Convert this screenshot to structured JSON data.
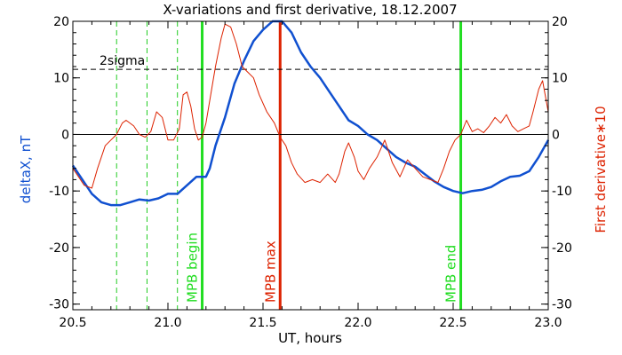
{
  "chart_data": {
    "type": "line",
    "title": "X-variations and first derivative, 18.12.2007",
    "xlabel": "UT, hours",
    "ylabel_left": "deltaX, nT",
    "ylabel_right": "First derivative∗10",
    "xlim": [
      20.5,
      23.0
    ],
    "ylim": [
      -31,
      20
    ],
    "x_ticks": [
      "20.5",
      "21.0",
      "21.5",
      "22.0",
      "22.5",
      "23.0"
    ],
    "x_tick_values": [
      20.5,
      21.0,
      21.5,
      22.0,
      22.5,
      23.0
    ],
    "y_ticks": [
      "20",
      "10",
      "0",
      "-10",
      "-20",
      "-30"
    ],
    "y_tick_values": [
      20,
      10,
      0,
      -10,
      -20,
      -30
    ],
    "grid": false,
    "threshold": {
      "label": "2sigma",
      "value": 11.5
    },
    "zero_line": 0,
    "markers": [
      {
        "label": "MPB begin",
        "x": 21.18,
        "color": "#22dd22"
      },
      {
        "label": "MPB max",
        "x": 21.59,
        "color": "#dd2200"
      },
      {
        "label": "MPB end",
        "x": 22.54,
        "color": "#22dd22"
      }
    ],
    "dashed_markers": [
      20.73,
      20.89,
      21.05
    ],
    "series": [
      {
        "name": "deltaX, nT",
        "color": "#1050d0",
        "points": [
          [
            20.5,
            -5.5
          ],
          [
            20.55,
            -8
          ],
          [
            20.6,
            -10.5
          ],
          [
            20.65,
            -12
          ],
          [
            20.7,
            -12.5
          ],
          [
            20.75,
            -12.5
          ],
          [
            20.8,
            -12
          ],
          [
            20.85,
            -11.5
          ],
          [
            20.9,
            -11.7
          ],
          [
            20.95,
            -11.3
          ],
          [
            21.0,
            -10.5
          ],
          [
            21.05,
            -10.5
          ],
          [
            21.1,
            -9
          ],
          [
            21.15,
            -7.5
          ],
          [
            21.2,
            -7.5
          ],
          [
            21.22,
            -6
          ],
          [
            21.25,
            -2
          ],
          [
            21.3,
            3
          ],
          [
            21.35,
            9
          ],
          [
            21.4,
            13
          ],
          [
            21.45,
            16.5
          ],
          [
            21.5,
            18.5
          ],
          [
            21.55,
            20
          ],
          [
            21.6,
            20
          ],
          [
            21.65,
            18
          ],
          [
            21.7,
            14.5
          ],
          [
            21.75,
            12
          ],
          [
            21.8,
            10
          ],
          [
            21.85,
            7.5
          ],
          [
            21.9,
            5
          ],
          [
            21.95,
            2.5
          ],
          [
            22.0,
            1.5
          ],
          [
            22.05,
            0
          ],
          [
            22.1,
            -1
          ],
          [
            22.15,
            -2.5
          ],
          [
            22.2,
            -4
          ],
          [
            22.25,
            -5
          ],
          [
            22.3,
            -5.7
          ],
          [
            22.35,
            -7
          ],
          [
            22.4,
            -8.3
          ],
          [
            22.45,
            -9.3
          ],
          [
            22.5,
            -10
          ],
          [
            22.55,
            -10.4
          ],
          [
            22.6,
            -10
          ],
          [
            22.65,
            -9.8
          ],
          [
            22.7,
            -9.3
          ],
          [
            22.75,
            -8.3
          ],
          [
            22.8,
            -7.5
          ],
          [
            22.85,
            -7.3
          ],
          [
            22.9,
            -6.5
          ],
          [
            22.95,
            -4
          ],
          [
            23.0,
            -1
          ]
        ]
      },
      {
        "name": "First derivative∗10",
        "color": "#dd2200",
        "points": [
          [
            20.5,
            -6
          ],
          [
            20.53,
            -7.5
          ],
          [
            20.56,
            -9
          ],
          [
            20.6,
            -9.5
          ],
          [
            20.63,
            -6
          ],
          [
            20.67,
            -2
          ],
          [
            20.7,
            -1
          ],
          [
            20.73,
            0
          ],
          [
            20.76,
            2
          ],
          [
            20.78,
            2.5
          ],
          [
            20.82,
            1.5
          ],
          [
            20.85,
            0
          ],
          [
            20.88,
            -0.5
          ],
          [
            20.91,
            0.5
          ],
          [
            20.94,
            4
          ],
          [
            20.97,
            3
          ],
          [
            21.0,
            -1
          ],
          [
            21.03,
            -1
          ],
          [
            21.06,
            1
          ],
          [
            21.08,
            7
          ],
          [
            21.1,
            7.5
          ],
          [
            21.12,
            5
          ],
          [
            21.14,
            1
          ],
          [
            21.16,
            -1
          ],
          [
            21.18,
            -0.5
          ],
          [
            21.2,
            2
          ],
          [
            21.23,
            8
          ],
          [
            21.25,
            12
          ],
          [
            21.28,
            17
          ],
          [
            21.3,
            19.5
          ],
          [
            21.33,
            19
          ],
          [
            21.36,
            16
          ],
          [
            21.39,
            12
          ],
          [
            21.42,
            11
          ],
          [
            21.45,
            10
          ],
          [
            21.48,
            7
          ],
          [
            21.52,
            4
          ],
          [
            21.56,
            2
          ],
          [
            21.59,
            -0.5
          ],
          [
            21.62,
            -2
          ],
          [
            21.65,
            -5
          ],
          [
            21.68,
            -7
          ],
          [
            21.72,
            -8.5
          ],
          [
            21.76,
            -8
          ],
          [
            21.8,
            -8.5
          ],
          [
            21.84,
            -7
          ],
          [
            21.88,
            -8.5
          ],
          [
            21.9,
            -7
          ],
          [
            21.93,
            -3
          ],
          [
            21.95,
            -1.5
          ],
          [
            21.98,
            -4
          ],
          [
            22.0,
            -6.5
          ],
          [
            22.03,
            -8
          ],
          [
            22.06,
            -6
          ],
          [
            22.1,
            -4
          ],
          [
            22.14,
            -1
          ],
          [
            22.18,
            -5
          ],
          [
            22.22,
            -7.5
          ],
          [
            22.26,
            -4.5
          ],
          [
            22.3,
            -6
          ],
          [
            22.34,
            -7.5
          ],
          [
            22.38,
            -8
          ],
          [
            22.42,
            -8.5
          ],
          [
            22.45,
            -6
          ],
          [
            22.48,
            -3
          ],
          [
            22.51,
            -1
          ],
          [
            22.54,
            0
          ],
          [
            22.57,
            2.5
          ],
          [
            22.6,
            0.5
          ],
          [
            22.63,
            1
          ],
          [
            22.66,
            0.3
          ],
          [
            22.69,
            1.5
          ],
          [
            22.72,
            3
          ],
          [
            22.75,
            2
          ],
          [
            22.78,
            3.5
          ],
          [
            22.81,
            1.5
          ],
          [
            22.84,
            0.5
          ],
          [
            22.87,
            1
          ],
          [
            22.9,
            1.5
          ],
          [
            22.92,
            4
          ],
          [
            22.95,
            8
          ],
          [
            22.97,
            9.5
          ],
          [
            23.0,
            4
          ]
        ]
      }
    ]
  }
}
